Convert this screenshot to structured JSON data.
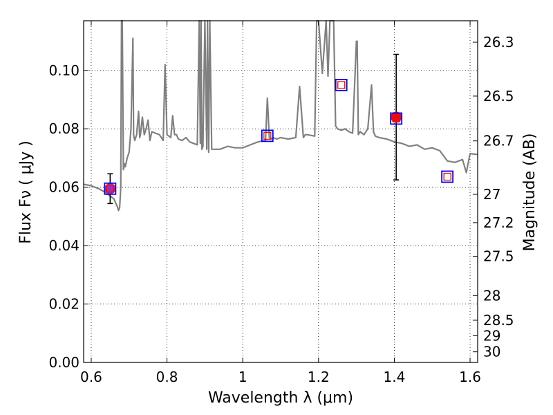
{
  "chart_data": {
    "type": "line",
    "xlabel": "Wavelength  λ (μm)",
    "ylabel": "Flux  Fν  ( μJy )",
    "ylabel_right": "Magnitude (AB)",
    "xlim": [
      0.58,
      1.62
    ],
    "ylim": [
      0.0,
      0.117
    ],
    "x_ticks": [
      0.6,
      0.8,
      1.0,
      1.2,
      1.4,
      1.6
    ],
    "x_tick_labels": [
      "0.6",
      "0.8",
      "1",
      "1.2",
      "1.4",
      "1.6"
    ],
    "y_ticks": [
      0.0,
      0.02,
      0.04,
      0.06,
      0.08,
      0.1
    ],
    "y_tick_labels": [
      "0.00",
      "0.02",
      "0.04",
      "0.06",
      "0.08",
      "0.10"
    ],
    "mag_ticks": [
      26.3,
      26.5,
      26.7,
      27,
      27.2,
      27.5,
      28,
      28.5,
      29,
      30
    ],
    "mag_tick_labels": [
      "26.3",
      "26.5",
      "26.7",
      "27",
      "27.2",
      "27.5",
      "28",
      "28.5",
      "29",
      "30"
    ],
    "grid": true,
    "colors": {
      "model": "#808080",
      "obs_purple": "#9b30b0",
      "obs_red": "#e01010",
      "phot_outer": "#0000ff",
      "phot_inner": "#ff0000",
      "errorbar": "#000000"
    },
    "series": [
      {
        "name": "model spectrum",
        "x": [
          0.58,
          0.6,
          0.62,
          0.64,
          0.66,
          0.67,
          0.672,
          0.675,
          0.678,
          0.68,
          0.682,
          0.685,
          0.688,
          0.69,
          0.695,
          0.7,
          0.705,
          0.71,
          0.712,
          0.715,
          0.72,
          0.725,
          0.728,
          0.73,
          0.735,
          0.74,
          0.745,
          0.75,
          0.755,
          0.76,
          0.77,
          0.78,
          0.79,
          0.795,
          0.8,
          0.81,
          0.815,
          0.82,
          0.825,
          0.83,
          0.84,
          0.85,
          0.86,
          0.87,
          0.88,
          0.885,
          0.888,
          0.89,
          0.892,
          0.895,
          0.9,
          0.905,
          0.907,
          0.91,
          0.913,
          0.918,
          0.92,
          0.94,
          0.96,
          0.98,
          1.0,
          1.02,
          1.04,
          1.06,
          1.065,
          1.07,
          1.075,
          1.08,
          1.09,
          1.1,
          1.12,
          1.14,
          1.15,
          1.16,
          1.165,
          1.17,
          1.19,
          1.195,
          1.2,
          1.21,
          1.22,
          1.225,
          1.23,
          1.24,
          1.245,
          1.25,
          1.26,
          1.27,
          1.28,
          1.29,
          1.3,
          1.302,
          1.305,
          1.31,
          1.32,
          1.33,
          1.34,
          1.345,
          1.35,
          1.36,
          1.38,
          1.4,
          1.42,
          1.44,
          1.46,
          1.48,
          1.5,
          1.52,
          1.54,
          1.56,
          1.58,
          1.59,
          1.6,
          1.62
        ],
        "y": [
          0.061,
          0.0605,
          0.0595,
          0.058,
          0.056,
          0.053,
          0.052,
          0.053,
          0.06,
          0.12,
          0.12,
          0.066,
          0.068,
          0.067,
          0.07,
          0.072,
          0.08,
          0.111,
          0.078,
          0.076,
          0.078,
          0.086,
          0.077,
          0.078,
          0.084,
          0.078,
          0.08,
          0.083,
          0.076,
          0.079,
          0.0785,
          0.078,
          0.076,
          0.102,
          0.078,
          0.077,
          0.0845,
          0.078,
          0.078,
          0.0765,
          0.076,
          0.077,
          0.0755,
          0.075,
          0.0745,
          0.12,
          0.075,
          0.12,
          0.073,
          0.074,
          0.12,
          0.073,
          0.12,
          0.072,
          0.12,
          0.073,
          0.073,
          0.073,
          0.074,
          0.0735,
          0.0735,
          0.0745,
          0.0755,
          0.076,
          0.0905,
          0.077,
          0.0765,
          0.077,
          0.0765,
          0.077,
          0.0765,
          0.077,
          0.0945,
          0.077,
          0.078,
          0.078,
          0.0775,
          0.12,
          0.12,
          0.099,
          0.12,
          0.098,
          0.12,
          0.12,
          0.081,
          0.08,
          0.0795,
          0.08,
          0.079,
          0.0785,
          0.11,
          0.11,
          0.078,
          0.079,
          0.078,
          0.08,
          0.095,
          0.079,
          0.0775,
          0.077,
          0.0765,
          0.0755,
          0.075,
          0.074,
          0.0745,
          0.073,
          0.0735,
          0.0725,
          0.069,
          0.0685,
          0.0695,
          0.065,
          0.0715,
          0.0712
        ]
      }
    ],
    "photometry_model": {
      "name": "model photometry",
      "x": [
        0.65,
        1.065,
        1.26,
        1.405,
        1.54
      ],
      "y": [
        0.0595,
        0.0776,
        0.095,
        0.0835,
        0.0636
      ]
    },
    "observations": [
      {
        "x": 0.65,
        "y": 0.0595,
        "yerr": 0.0051,
        "color": "purple"
      },
      {
        "x": 1.405,
        "y": 0.084,
        "yerr": 0.0215,
        "color": "red"
      }
    ]
  }
}
